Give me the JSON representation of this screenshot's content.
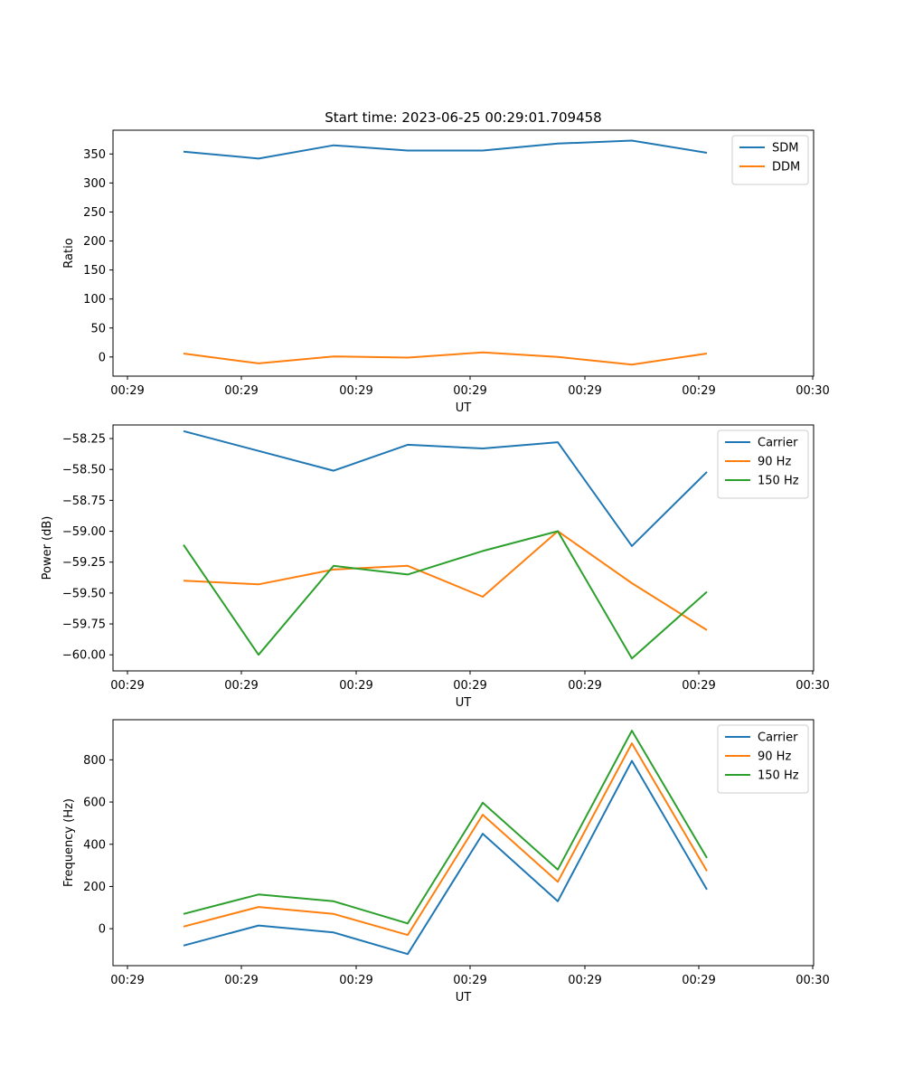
{
  "figure": {
    "title": "Start time: 2023-06-25 00:29:01.709458"
  },
  "chart_data": [
    {
      "type": "line",
      "xlabel": "UT",
      "ylabel": "Ratio",
      "xticks": [
        "00:29",
        "00:29",
        "00:29",
        "00:29",
        "00:29",
        "00:29",
        "00:30"
      ],
      "ylim": [
        -33,
        391
      ],
      "yticks": [
        0,
        50,
        100,
        150,
        200,
        250,
        300,
        350
      ],
      "grid": false,
      "legend_position": "top-right",
      "series": [
        {
          "name": "SDM",
          "color": "#1f77b4",
          "values": [
            354,
            342,
            365,
            356,
            356,
            368,
            373,
            352
          ]
        },
        {
          "name": "DDM",
          "color": "#ff7f0e",
          "values": [
            6,
            -11,
            1,
            -1,
            8,
            0,
            -13,
            6
          ]
        }
      ]
    },
    {
      "type": "line",
      "xlabel": "UT",
      "ylabel": "Power (dB)",
      "xticks": [
        "00:29",
        "00:29",
        "00:29",
        "00:29",
        "00:29",
        "00:29",
        "00:30"
      ],
      "ylim": [
        -60.13,
        -58.14
      ],
      "yticks": [
        -60.0,
        -59.75,
        -59.5,
        -59.25,
        -59.0,
        -58.75,
        -58.5,
        -58.25
      ],
      "ytick_labels": [
        "−60.00",
        "−59.75",
        "−59.50",
        "−59.25",
        "−59.00",
        "−58.75",
        "−58.50",
        "−58.25"
      ],
      "grid": false,
      "legend_position": "top-right",
      "series": [
        {
          "name": "Carrier",
          "color": "#1f77b4",
          "values": [
            -58.19,
            -58.35,
            -58.51,
            -58.3,
            -58.33,
            -58.28,
            -59.12,
            -58.52
          ]
        },
        {
          "name": "90 Hz",
          "color": "#ff7f0e",
          "values": [
            -59.4,
            -59.43,
            -59.31,
            -59.28,
            -59.53,
            -59.0,
            -59.42,
            -59.8
          ]
        },
        {
          "name": "150 Hz",
          "color": "#2ca02c",
          "values": [
            -59.11,
            -60.0,
            -59.28,
            -59.35,
            -59.16,
            -59.0,
            -60.03,
            -59.49
          ]
        }
      ]
    },
    {
      "type": "line",
      "xlabel": "UT",
      "ylabel": "Frequency (Hz)",
      "xticks": [
        "00:29",
        "00:29",
        "00:29",
        "00:29",
        "00:29",
        "00:29",
        "00:30"
      ],
      "ylim": [
        -175,
        990
      ],
      "yticks": [
        0,
        200,
        400,
        600,
        800
      ],
      "grid": false,
      "legend_position": "top-right",
      "series": [
        {
          "name": "Carrier",
          "color": "#1f77b4",
          "values": [
            -80,
            15,
            -18,
            -120,
            450,
            130,
            795,
            185
          ]
        },
        {
          "name": "90 Hz",
          "color": "#ff7f0e",
          "values": [
            10,
            103,
            70,
            -30,
            540,
            222,
            878,
            273
          ]
        },
        {
          "name": "150 Hz",
          "color": "#2ca02c",
          "values": [
            70,
            162,
            130,
            25,
            597,
            280,
            938,
            335
          ]
        }
      ]
    }
  ]
}
